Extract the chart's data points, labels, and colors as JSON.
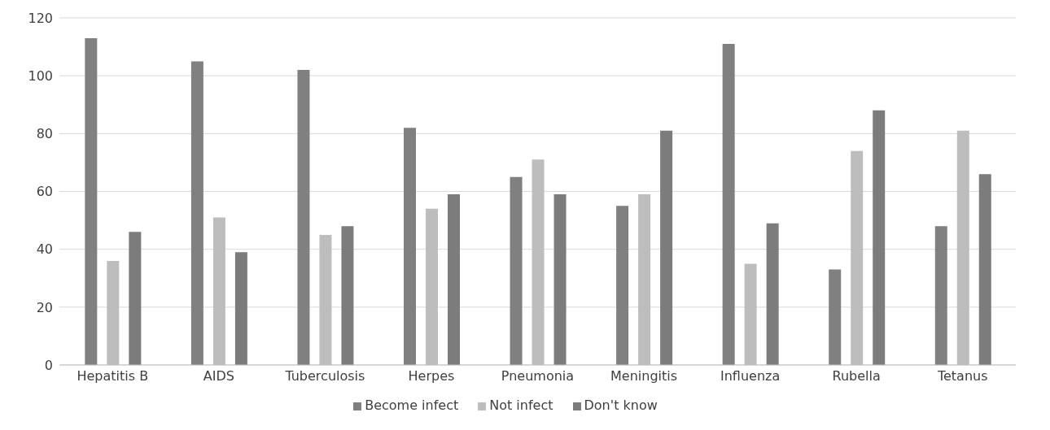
{
  "chart_data": {
    "type": "bar",
    "categories": [
      "Hepatitis B",
      "AIDS",
      "Tuberculosis",
      "Herpes",
      "Pneumonia",
      "Meningitis",
      "Influenza",
      "Rubella",
      "Tetanus"
    ],
    "series": [
      {
        "name": "Become infect",
        "color": "#808080",
        "values": [
          113,
          105,
          102,
          82,
          65,
          55,
          111,
          33,
          48
        ]
      },
      {
        "name": "Not infect",
        "color": "#bdbdbd",
        "values": [
          36,
          51,
          45,
          54,
          71,
          59,
          35,
          74,
          81
        ]
      },
      {
        "name": "Don't know",
        "color": "#7c7c7c",
        "values": [
          46,
          39,
          48,
          59,
          59,
          81,
          49,
          88,
          66
        ]
      }
    ],
    "ylim": [
      0,
      120
    ],
    "yticks": [
      0,
      20,
      40,
      60,
      80,
      100,
      120
    ],
    "grid": "y",
    "legend": "bottom"
  }
}
